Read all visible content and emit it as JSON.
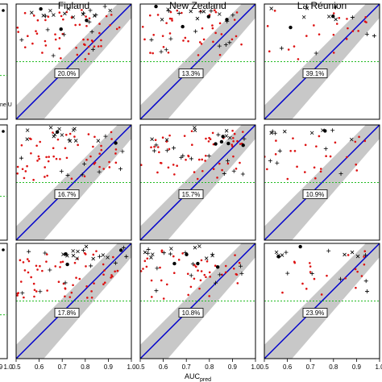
{
  "chart_data": {
    "type": "scatter",
    "columns": [
      "Finland",
      "New Zealand",
      "La Réunion"
    ],
    "xlabel_main": "AUC",
    "xlabel_sub": "pred",
    "left_panel_ylabel_fragment": "ne U",
    "left_panel_x_ticks": [
      "9",
      "1.0"
    ],
    "xlim": [
      0.5,
      1.0
    ],
    "x_ticks": [
      "0.5",
      "0.6",
      "0.7",
      "0.8",
      "0.9",
      "1.0"
    ],
    "ylim": [
      0,
      1
    ],
    "threshold_y": 0.5,
    "grid": false,
    "colors": {
      "band": "#c8c8c8",
      "line": "#0000cc",
      "threshold": "#22bb22",
      "red_points": "#dd1111",
      "black_points": "#000000"
    },
    "panels": [
      {
        "row": 0,
        "col": 0,
        "percent": "20.0%",
        "n_red": 55,
        "n_plus": 12,
        "n_cross": 10,
        "n_star": 3
      },
      {
        "row": 0,
        "col": 1,
        "percent": "13.3%",
        "n_red": 42,
        "n_plus": 14,
        "n_cross": 6,
        "n_star": 4
      },
      {
        "row": 0,
        "col": 2,
        "percent": "39.1%",
        "n_red": 22,
        "n_plus": 6,
        "n_cross": 5,
        "n_star": 2
      },
      {
        "row": 1,
        "col": 0,
        "percent": "16.7%",
        "n_red": 55,
        "n_plus": 10,
        "n_cross": 12,
        "n_star": 2
      },
      {
        "row": 1,
        "col": 1,
        "percent": "15.7%",
        "n_red": 55,
        "n_plus": 14,
        "n_cross": 7,
        "n_star": 5
      },
      {
        "row": 1,
        "col": 2,
        "percent": "10.9%",
        "n_red": 26,
        "n_plus": 8,
        "n_cross": 5,
        "n_star": 1
      },
      {
        "row": 2,
        "col": 0,
        "percent": "17.8%",
        "n_red": 60,
        "n_plus": 12,
        "n_cross": 10,
        "n_star": 3
      },
      {
        "row": 2,
        "col": 1,
        "percent": "10.8%",
        "n_red": 45,
        "n_plus": 14,
        "n_cross": 8,
        "n_star": 4
      },
      {
        "row": 2,
        "col": 2,
        "percent": "23.9%",
        "n_red": 20,
        "n_plus": 8,
        "n_cross": 6,
        "n_star": 2
      }
    ]
  }
}
